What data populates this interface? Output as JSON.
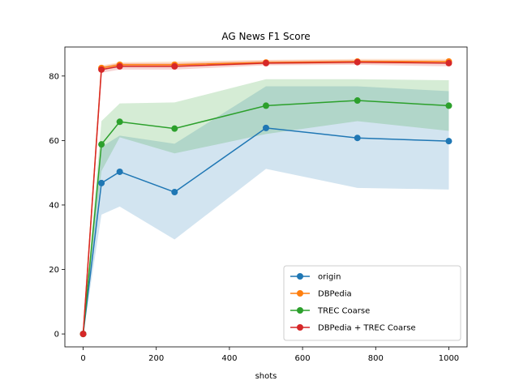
{
  "chart_data": {
    "type": "line",
    "title": "AG News F1 Score",
    "xlabel": "shots",
    "ylabel": "",
    "xlim": [
      -50,
      1050
    ],
    "ylim": [
      -4,
      89
    ],
    "xticks": [
      0,
      200,
      400,
      600,
      800,
      1000
    ],
    "yticks": [
      0,
      20,
      40,
      60,
      80
    ],
    "grid": false,
    "legend_position": "lower-right",
    "x": [
      0,
      50,
      100,
      250,
      500,
      750,
      1000
    ],
    "series": [
      {
        "name": "origin",
        "color": "#1f77b4",
        "values": [
          0,
          46.8,
          50.3,
          44.0,
          63.9,
          60.8,
          59.8
        ],
        "lower": [
          0,
          37.0,
          39.5,
          29.3,
          51.2,
          45.3,
          44.8
        ],
        "upper": [
          0,
          58.0,
          61.5,
          59.0,
          76.8,
          76.8,
          75.3
        ]
      },
      {
        "name": "DBPedia",
        "color": "#ff7f0e",
        "values": [
          0,
          82.5,
          83.5,
          83.5,
          84.2,
          84.5,
          84.5
        ],
        "lower": [
          0,
          81.8,
          82.8,
          82.8,
          83.6,
          83.8,
          83.8
        ],
        "upper": [
          0,
          83.3,
          84.3,
          84.5,
          85.0,
          85.3,
          85.3
        ]
      },
      {
        "name": "TREC Coarse",
        "color": "#2ca02c",
        "values": [
          0,
          58.8,
          65.8,
          63.7,
          70.8,
          72.4,
          70.8
        ],
        "lower": [
          0,
          50.5,
          61.0,
          56.0,
          62.0,
          66.0,
          63.0
        ],
        "upper": [
          0,
          66.0,
          71.5,
          71.8,
          79.0,
          79.0,
          78.7
        ]
      },
      {
        "name": "DBPedia + TREC Coarse",
        "color": "#d62728",
        "values": [
          0,
          82.0,
          83.0,
          83.0,
          84.0,
          84.3,
          84.0
        ],
        "lower": [
          0,
          81.0,
          82.0,
          82.0,
          83.3,
          83.5,
          83.0
        ],
        "upper": [
          0,
          83.0,
          84.0,
          84.0,
          84.8,
          85.0,
          84.8
        ]
      }
    ]
  }
}
